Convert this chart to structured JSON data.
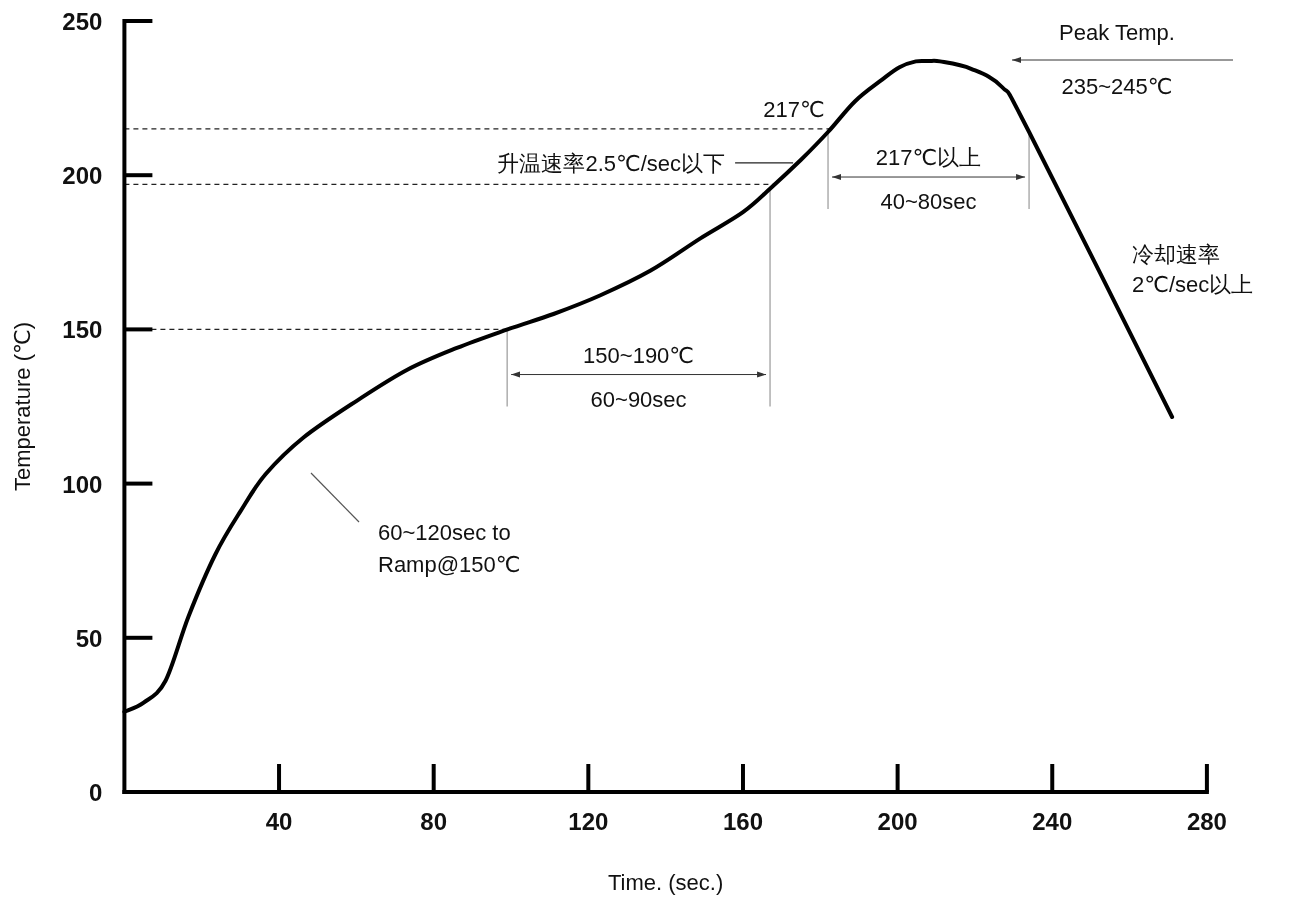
{
  "chart_data": {
    "type": "line",
    "xlabel": "Time. (sec.)",
    "ylabel": "Temperature (℃)",
    "xlim": [
      0,
      280
    ],
    "ylim": [
      0,
      250
    ],
    "xticks": [
      40,
      80,
      120,
      160,
      200,
      240,
      280
    ],
    "yticks": [
      0,
      50,
      100,
      150,
      200,
      250
    ],
    "line_style": "solid",
    "series": [
      {
        "color": "#000000",
        "x": [
          0,
          5,
          10.6,
          16.6,
          23.5,
          30,
          36.5,
          46.4,
          60.3,
          73.3,
          86,
          99.1,
          111,
          123,
          136,
          149,
          160,
          167,
          175,
          182,
          189,
          196,
          200.5,
          204.7,
          208,
          211,
          219,
          227,
          234,
          271
        ],
        "values": [
          26,
          29,
          36,
          57,
          77,
          91,
          103,
          115,
          127,
          137,
          144,
          150,
          155,
          161,
          169,
          179.5,
          188,
          195.6,
          205,
          214,
          224,
          231,
          235,
          236.9,
          237,
          236.9,
          234.5,
          228.6,
          214,
          121.6
        ]
      }
    ],
    "ref_lines": [
      {
        "axis": "y",
        "value": 215,
        "label": "217℃",
        "line_style": "dashed"
      },
      {
        "axis": "y",
        "value": 197,
        "line_style": "dashed"
      },
      {
        "axis": "y",
        "value": 150,
        "line_style": "dashed"
      },
      {
        "axis": "x",
        "value": 99,
        "color": "#999999"
      },
      {
        "axis": "x",
        "value": 167,
        "color": "#999999"
      },
      {
        "axis": "x",
        "value": 182,
        "color": "#999999"
      },
      {
        "axis": "x",
        "value": 234,
        "color": "#999999"
      }
    ],
    "annotations": [
      "150~190℃",
      "60~90sec",
      "217℃以上",
      "40~80sec",
      {
        "text": "升温速率2.5℃/sec以下",
        "x": 174,
        "y": 204
      },
      "60~120sec to",
      "Ramp@150℃",
      "冷却速率",
      "2℃/sec以上",
      "Peak Temp.",
      "235~245℃"
    ]
  }
}
